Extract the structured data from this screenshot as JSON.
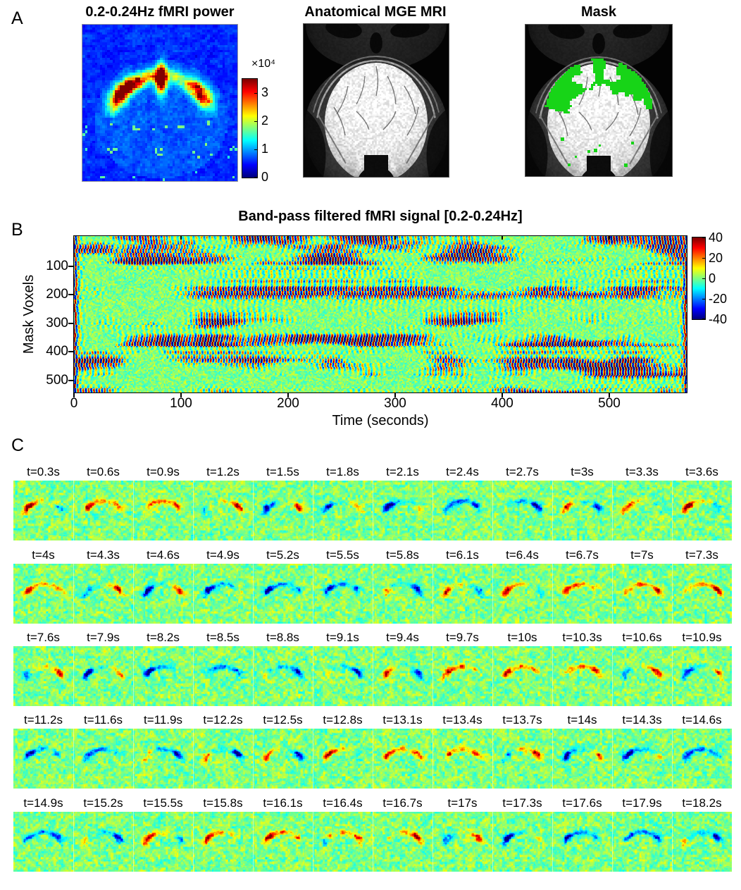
{
  "panelA": {
    "label": "A",
    "power": {
      "title": "0.2-0.24Hz fMRI power"
    },
    "anatomy": {
      "title": "Anatomical MGE MRI"
    },
    "mask": {
      "title": "Mask"
    },
    "colorbar": {
      "scale_label": "×10⁴",
      "ticks": [
        "3",
        "2",
        "1",
        "0"
      ],
      "tick_values": [
        3,
        2,
        1,
        0
      ],
      "value_max": 3.5,
      "value_min": 0
    }
  },
  "panelB": {
    "label": "B",
    "title": "Band-pass filtered fMRI signal [0.2-0.24Hz]",
    "ylabel": "Mask Voxels",
    "xlabel": "Time (seconds)",
    "yticks": [
      "100",
      "200",
      "300",
      "400",
      "500"
    ],
    "ytick_values": [
      100,
      200,
      300,
      400,
      500
    ],
    "xticks": [
      "0",
      "100",
      "200",
      "300",
      "400",
      "500"
    ],
    "xtick_values": [
      0,
      100,
      200,
      300,
      400,
      500
    ],
    "axes": {
      "xlim": [
        0,
        572
      ],
      "ylim": [
        1,
        548
      ]
    },
    "colorbar": {
      "ticks": [
        "40",
        "20",
        "0",
        "-20",
        "-40"
      ],
      "tick_values": [
        40,
        20,
        0,
        -20,
        -40
      ],
      "value_max": 40,
      "value_min": -40
    }
  },
  "panelC": {
    "label": "C",
    "rows": [
      [
        "t=0.3s",
        "t=0.6s",
        "t=0.9s",
        "t=1.2s",
        "t=1.5s",
        "t=1.8s",
        "t=2.1s",
        "t=2.4s",
        "t=2.7s",
        "t=3s",
        "t=3.3s",
        "t=3.6s"
      ],
      [
        "t=4s",
        "t=4.3s",
        "t=4.6s",
        "t=4.9s",
        "t=5.2s",
        "t=5.5s",
        "t=5.8s",
        "t=6.1s",
        "t=6.4s",
        "t=6.7s",
        "t=7s",
        "t=7.3s"
      ],
      [
        "t=7.6s",
        "t=7.9s",
        "t=8.2s",
        "t=8.5s",
        "t=8.8s",
        "t=9.1s",
        "t=9.4s",
        "t=9.7s",
        "t=10s",
        "t=10.3s",
        "t=10.6s",
        "t=10.9s"
      ],
      [
        "t=11.2s",
        "t=11.6s",
        "t=11.9s",
        "t=12.2s",
        "t=12.5s",
        "t=12.8s",
        "t=13.1s",
        "t=13.4s",
        "t=13.7s",
        "t=14s",
        "t=14.3s",
        "t=14.6s"
      ],
      [
        "t=14.9s",
        "t=15.2s",
        "t=15.5s",
        "t=15.8s",
        "t=16.1s",
        "t=16.4s",
        "t=16.7s",
        "t=17s",
        "t=17.3s",
        "t=17.6s",
        "t=17.9s",
        "t=18.2s"
      ]
    ]
  },
  "colors": {
    "mask_green": "#17d417",
    "figure_background": "#ffffff",
    "colormap": "jet"
  }
}
